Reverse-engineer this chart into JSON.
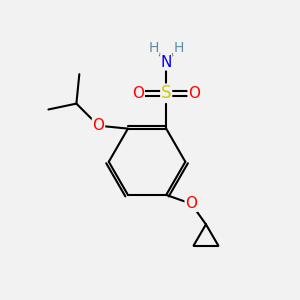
{
  "background_color": "#f2f2f2",
  "atom_colors": {
    "C": "#000000",
    "H": "#5f8ea0",
    "N": "#0000ff",
    "O": "#ff0000",
    "S": "#cccc00"
  },
  "bond_color": "#000000",
  "bond_width": 1.5,
  "figsize": [
    3.0,
    3.0
  ],
  "dpi": 100
}
